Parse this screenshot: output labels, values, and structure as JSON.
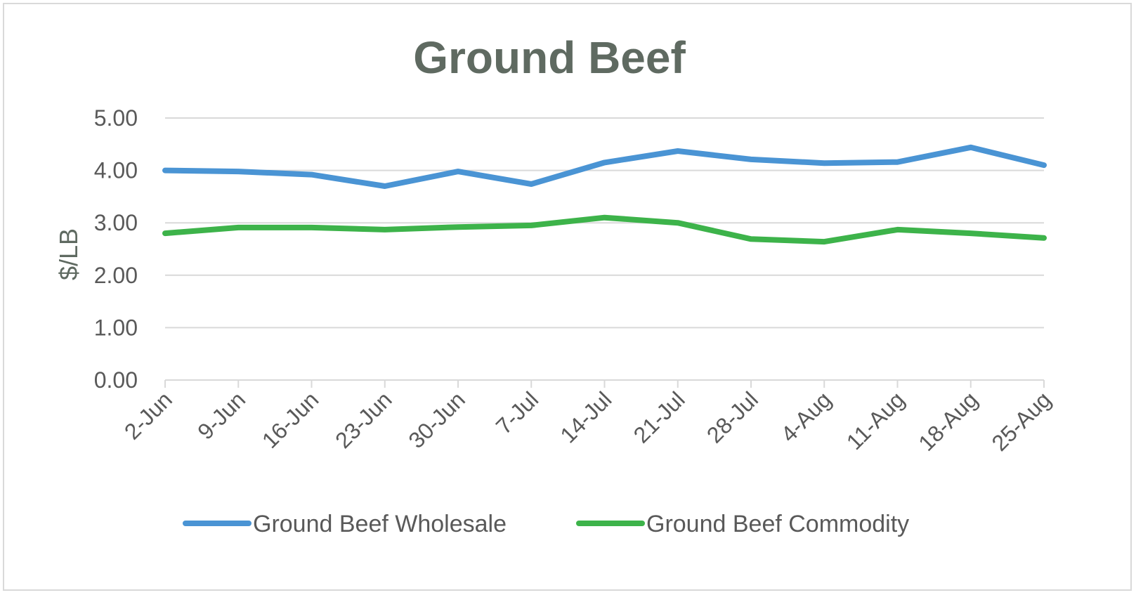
{
  "chart_data": {
    "type": "line",
    "title": "Ground Beef",
    "xlabel": "",
    "ylabel": "$/LB",
    "ylim": [
      0,
      5
    ],
    "yticks": [
      "0.00",
      "1.00",
      "2.00",
      "3.00",
      "4.00",
      "5.00"
    ],
    "categories": [
      "2-Jun",
      "9-Jun",
      "16-Jun",
      "23-Jun",
      "30-Jun",
      "7-Jul",
      "14-Jul",
      "21-Jul",
      "28-Jul",
      "4-Aug",
      "11-Aug",
      "18-Aug",
      "25-Aug"
    ],
    "series": [
      {
        "name": "Ground Beef Wholesale",
        "color": "#4a94d4",
        "values": [
          4.0,
          3.98,
          3.92,
          3.7,
          3.98,
          3.74,
          4.15,
          4.37,
          4.21,
          4.14,
          4.16,
          4.44,
          4.1
        ]
      },
      {
        "name": "Ground Beef Commodity",
        "color": "#3db34a",
        "values": [
          2.8,
          2.91,
          2.91,
          2.87,
          2.92,
          2.95,
          3.1,
          3.0,
          2.69,
          2.64,
          2.87,
          2.8,
          2.71
        ]
      }
    ],
    "grid": true,
    "legend": "bottom"
  }
}
